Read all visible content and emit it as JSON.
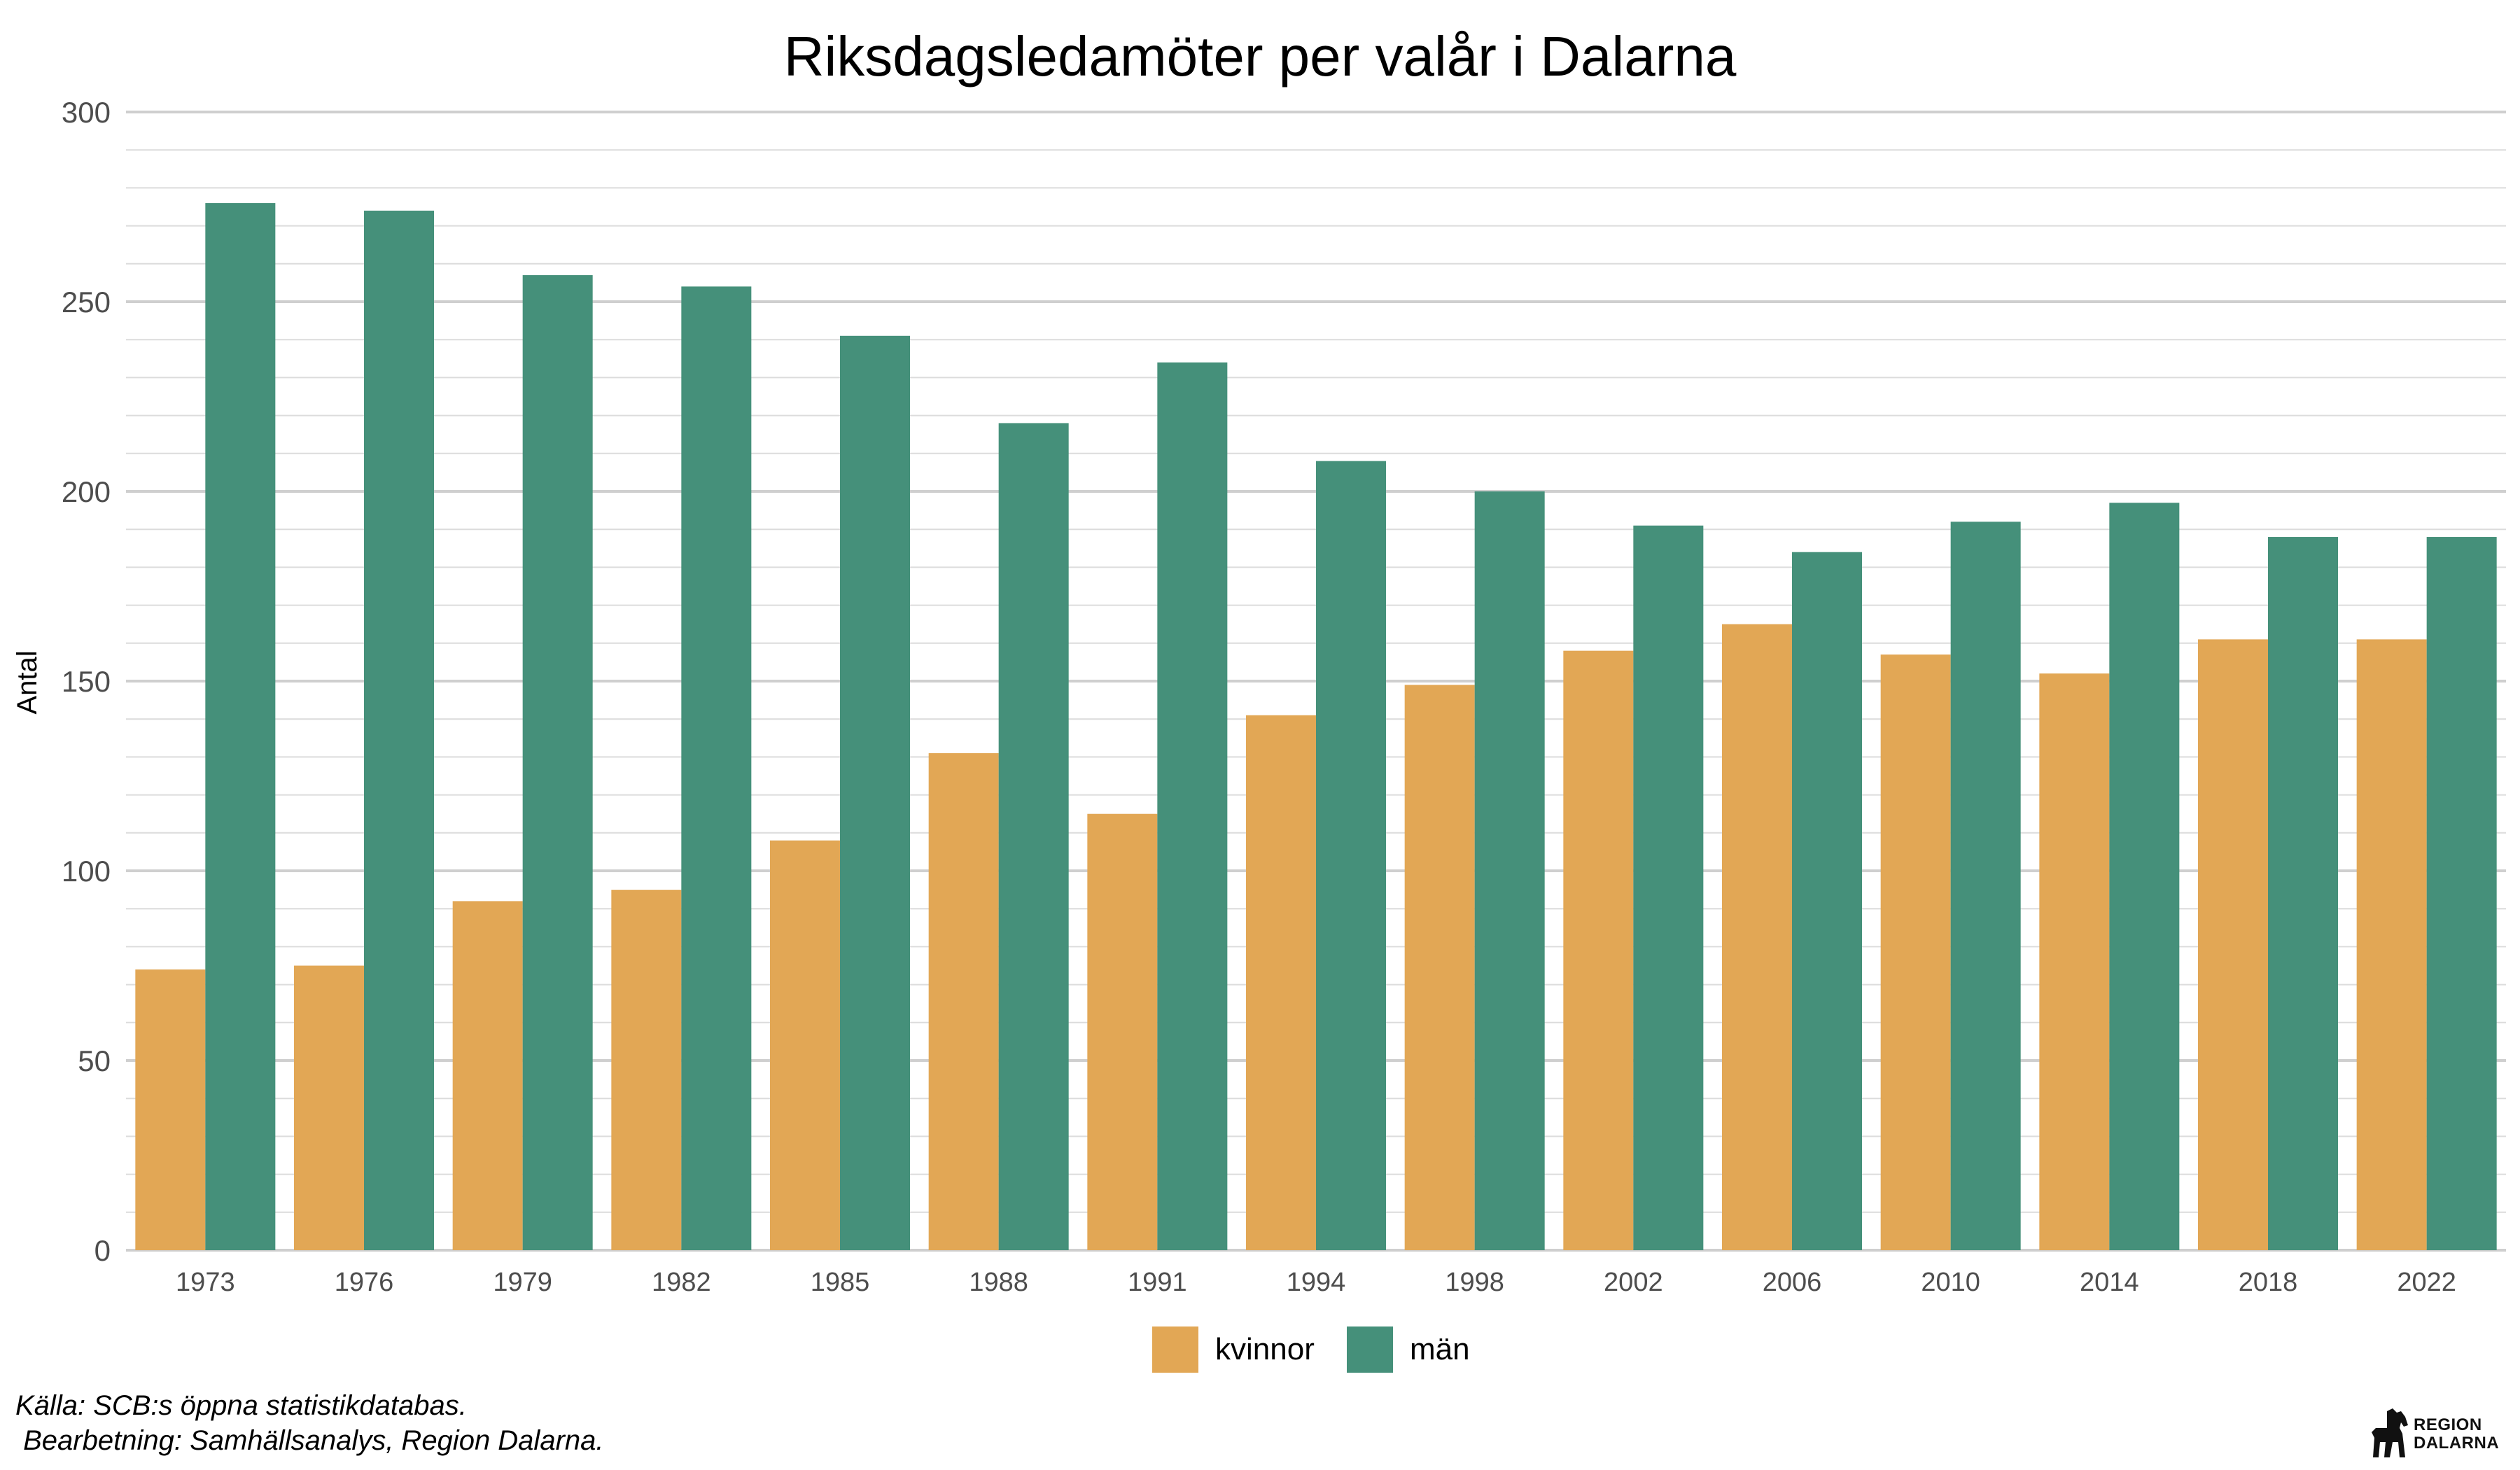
{
  "chart_data": {
    "type": "bar",
    "title": "Riksdagsledamöter per valår i Dalarna",
    "xlabel": "",
    "ylabel": "Antal",
    "ylim": [
      0,
      300
    ],
    "yticks": [
      "0",
      "50",
      "100",
      "150",
      "200",
      "250",
      "300"
    ],
    "grid": true,
    "legend_position": "bottom",
    "categories": [
      "1973",
      "1976",
      "1979",
      "1982",
      "1985",
      "1988",
      "1991",
      "1994",
      "1998",
      "2002",
      "2006",
      "2010",
      "2014",
      "2018",
      "2022"
    ],
    "series": [
      {
        "name": "kvinnor",
        "color": "#E2A755",
        "values": [
          74,
          75,
          92,
          95,
          108,
          131,
          115,
          141,
          149,
          158,
          165,
          157,
          152,
          161,
          161
        ]
      },
      {
        "name": "män",
        "color": "#45907A",
        "values": [
          276,
          274,
          257,
          254,
          241,
          218,
          234,
          208,
          200,
          191,
          184,
          192,
          197,
          188,
          188
        ]
      }
    ]
  },
  "caption": {
    "line1": "Källa: SCB:s öppna statistikdatabas.",
    "line2": " Bearbetning: Samhällsanalys, Region Dalarna."
  },
  "logo": {
    "line1": "REGION",
    "line2": "DALARNA",
    "icon": "dala-horse-icon"
  }
}
